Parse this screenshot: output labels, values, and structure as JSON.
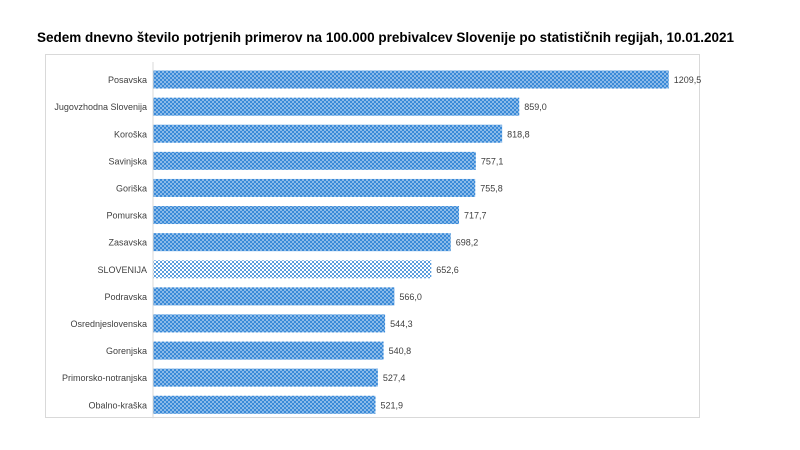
{
  "chart_data": {
    "type": "bar",
    "orientation": "horizontal",
    "title": "Sedem dnevno število potrjenih primerov na 100.000  prebivalcev Slovenije po statističnih regijah, 10.01.2021",
    "categories": [
      "Posavska",
      "Jugovzhodna Slovenija",
      "Koroška",
      "Savinjska",
      "Goriška",
      "Pomurska",
      "Zasavska",
      "SLOVENIJA",
      "Podravska",
      "Osrednjeslovenska",
      "Gorenjska",
      "Primorsko-notranjska",
      "Obalno-kraška"
    ],
    "values": [
      1209.5,
      859.0,
      818.8,
      757.1,
      755.8,
      717.7,
      698.2,
      652.6,
      566.0,
      544.3,
      540.8,
      527.4,
      521.9
    ],
    "value_labels": [
      "1209,5",
      "859,0",
      "818,8",
      "757,1",
      "755,8",
      "717,7",
      "698,2",
      "652,6",
      "566,0",
      "544,3",
      "540,8",
      "527,4",
      "521,9"
    ],
    "highlight_category": "SLOVENIJA",
    "xlim": [
      0,
      1250
    ],
    "grid": false,
    "legend": "none",
    "colors": {
      "bar": "#3a8ad8",
      "highlight": "#6aaee8",
      "dots": "#ffffff",
      "label": "#404040"
    }
  }
}
